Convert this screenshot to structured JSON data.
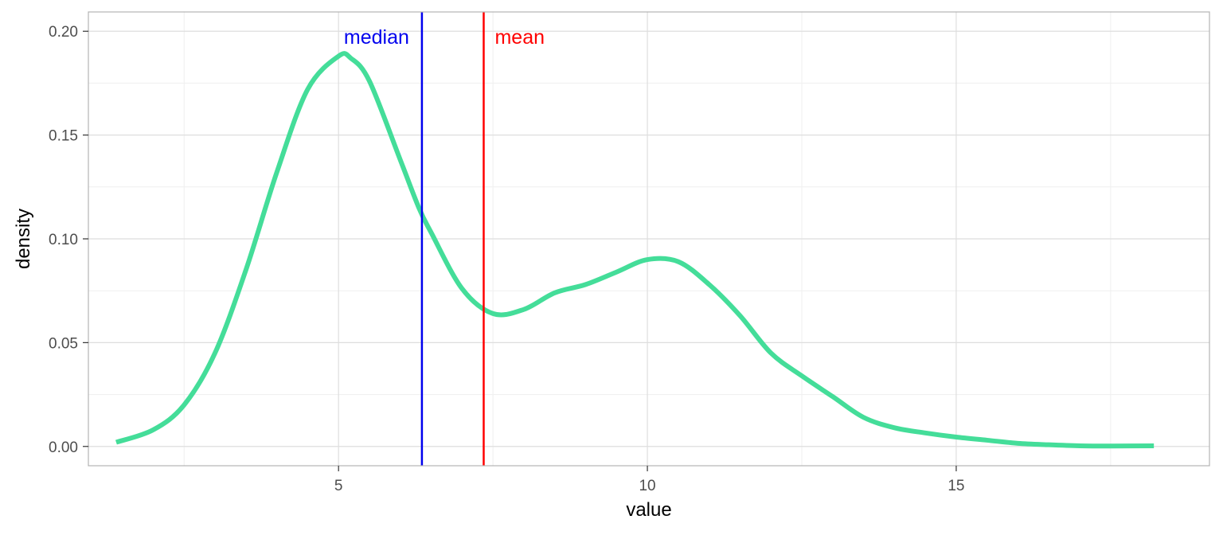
{
  "chart_data": {
    "type": "line",
    "title": "",
    "xlabel": "value",
    "ylabel": "density",
    "xlim": [
      0.95,
      19.1
    ],
    "ylim": [
      -0.0093,
      0.2093
    ],
    "x_ticks": [
      5,
      10,
      15
    ],
    "x_tick_labels": [
      "5",
      "10",
      "15"
    ],
    "y_ticks": [
      0.0,
      0.05,
      0.1,
      0.15,
      0.2
    ],
    "y_tick_labels": [
      "0.00",
      "0.05",
      "0.10",
      "0.15",
      "0.20"
    ],
    "grid": true,
    "legend": "none",
    "series": [
      {
        "color": "#44DD99",
        "x": [
          1.4,
          2.0,
          2.5,
          3.0,
          3.5,
          4.0,
          4.5,
          5.0,
          5.2,
          5.5,
          6.0,
          6.3,
          6.5,
          7.0,
          7.5,
          8.0,
          8.5,
          9.0,
          9.5,
          10.0,
          10.5,
          11.0,
          11.5,
          12.0,
          12.5,
          13.0,
          13.5,
          14.0,
          14.5,
          15.0,
          15.5,
          16.0,
          16.5,
          17.0,
          17.5,
          18.2
        ],
        "y": [
          0.002,
          0.008,
          0.02,
          0.045,
          0.085,
          0.132,
          0.172,
          0.188,
          0.187,
          0.176,
          0.138,
          0.115,
          0.103,
          0.076,
          0.064,
          0.066,
          0.074,
          0.078,
          0.084,
          0.09,
          0.089,
          0.078,
          0.063,
          0.045,
          0.034,
          0.024,
          0.014,
          0.009,
          0.0065,
          0.0045,
          0.003,
          0.0015,
          0.0008,
          0.0003,
          0.0002,
          0.0003
        ]
      }
    ],
    "vlines": [
      {
        "x": 6.35,
        "label": "median",
        "color": "#0000ee",
        "label_side": "left"
      },
      {
        "x": 7.35,
        "label": "mean",
        "color": "#ff0000",
        "label_side": "right"
      }
    ]
  },
  "colors": {
    "panel_border": "#b3b3b3",
    "grid_major": "#dedede",
    "grid_minor": "#efefef"
  }
}
